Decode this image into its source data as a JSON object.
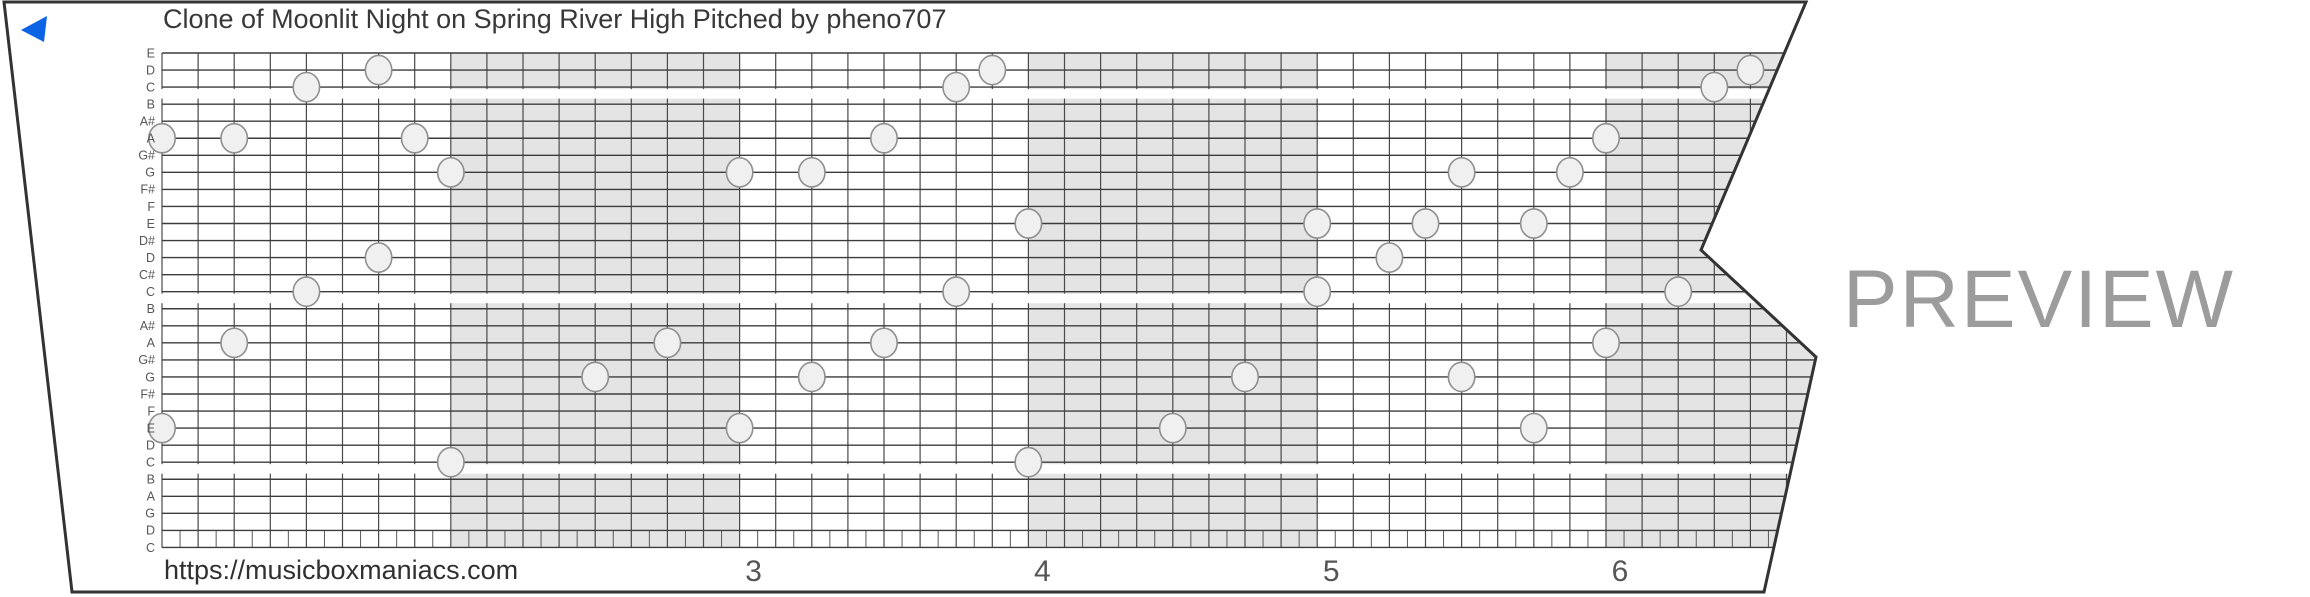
{
  "title": "Clone of Moonlit Night on Spring River High Pitched by pheno707",
  "watermark": "PREVIEW",
  "footer": {
    "url": "https://musicboxmaniacs.com",
    "measure_numbers": [
      "3",
      "4",
      "5",
      "6"
    ],
    "first_numbered_measure_start_col": 16
  },
  "icons": {
    "back": "blue-left-triangle"
  },
  "colors": {
    "accent_blue": "#0c63e4",
    "band_gray": "#e4e4e4",
    "grid_line_dark": "#3c3c3c",
    "grid_line_vertical": "#4a4a4a",
    "tick_line": "#5a5a5a",
    "dot_fill": "#f0f0f0",
    "dot_stroke": "#8f8f8f",
    "strip_border": "#333333",
    "watermark_gray": "#9c9c9c"
  },
  "strip": {
    "note_labels": [
      "E",
      "D",
      "C",
      "B",
      "A#",
      "A",
      "G#",
      "G",
      "F#",
      "F",
      "E",
      "D#",
      "D",
      "C#",
      "C",
      "B",
      "A#",
      "A",
      "G#",
      "G",
      "F#",
      "F",
      "E",
      "D",
      "C",
      "B",
      "A",
      "G",
      "D",
      "C"
    ],
    "octave_break_rows": [
      3,
      15,
      25
    ],
    "gray_measures": [
      1,
      3,
      5
    ],
    "columns_per_measure": 8,
    "notes": [
      {
        "row": 2,
        "pitch": "D",
        "col": 6
      },
      {
        "row": 2,
        "pitch": "D",
        "col": 23
      },
      {
        "row": 2,
        "pitch": "D",
        "col": 44
      },
      {
        "row": 3,
        "pitch": "C",
        "col": 4
      },
      {
        "row": 3,
        "pitch": "C",
        "col": 22
      },
      {
        "row": 3,
        "pitch": "C",
        "col": 43
      },
      {
        "row": 6,
        "pitch": "A",
        "col": 0
      },
      {
        "row": 6,
        "pitch": "A",
        "col": 2
      },
      {
        "row": 6,
        "pitch": "A",
        "col": 7
      },
      {
        "row": 6,
        "pitch": "A",
        "col": 20
      },
      {
        "row": 6,
        "pitch": "A",
        "col": 40
      },
      {
        "row": 8,
        "pitch": "G",
        "col": 8
      },
      {
        "row": 8,
        "pitch": "G",
        "col": 16
      },
      {
        "row": 8,
        "pitch": "G",
        "col": 18
      },
      {
        "row": 8,
        "pitch": "G",
        "col": 36
      },
      {
        "row": 8,
        "pitch": "G",
        "col": 39
      },
      {
        "row": 11,
        "pitch": "E",
        "col": 24
      },
      {
        "row": 11,
        "pitch": "E",
        "col": 32
      },
      {
        "row": 11,
        "pitch": "E",
        "col": 35
      },
      {
        "row": 11,
        "pitch": "E",
        "col": 38
      },
      {
        "row": 13,
        "pitch": "D",
        "col": 6
      },
      {
        "row": 13,
        "pitch": "D",
        "col": 34
      },
      {
        "row": 15,
        "pitch": "C",
        "col": 4
      },
      {
        "row": 15,
        "pitch": "C",
        "col": 22
      },
      {
        "row": 15,
        "pitch": "C",
        "col": 32
      },
      {
        "row": 15,
        "pitch": "C",
        "col": 42
      },
      {
        "row": 18,
        "pitch": "A",
        "col": 2
      },
      {
        "row": 18,
        "pitch": "A",
        "col": 14
      },
      {
        "row": 18,
        "pitch": "A",
        "col": 20
      },
      {
        "row": 18,
        "pitch": "A",
        "col": 40
      },
      {
        "row": 20,
        "pitch": "G",
        "col": 12
      },
      {
        "row": 20,
        "pitch": "G",
        "col": 18
      },
      {
        "row": 20,
        "pitch": "G",
        "col": 30
      },
      {
        "row": 20,
        "pitch": "G",
        "col": 36
      },
      {
        "row": 23,
        "pitch": "E",
        "col": 0
      },
      {
        "row": 23,
        "pitch": "E",
        "col": 16
      },
      {
        "row": 23,
        "pitch": "E",
        "col": 28
      },
      {
        "row": 23,
        "pitch": "E",
        "col": 38
      },
      {
        "row": 25,
        "pitch": "C",
        "col": 8
      },
      {
        "row": 25,
        "pitch": "C",
        "col": 24
      }
    ]
  }
}
